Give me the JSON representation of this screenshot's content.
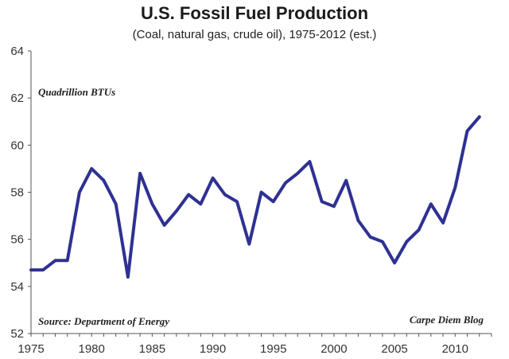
{
  "chart_data": {
    "type": "line",
    "title": "U.S. Fossil Fuel Production",
    "subtitle": "(Coal, natural gas, crude oil), 1975-2012 (est.)",
    "unit_label": "Quadrillion BTUs",
    "source": "Source: Department of Energy",
    "credit": "Carpe Diem Blog",
    "xlim": [
      1975,
      2013
    ],
    "ylim": [
      52,
      64
    ],
    "x_ticks": [
      1975,
      1980,
      1985,
      1990,
      1995,
      2000,
      2005,
      2010
    ],
    "y_ticks": [
      52,
      54,
      56,
      58,
      60,
      62,
      64
    ],
    "grid": "none",
    "line_color": "#2e3192",
    "x": [
      1975,
      1976,
      1977,
      1978,
      1979,
      1980,
      1981,
      1982,
      1983,
      1984,
      1985,
      1986,
      1987,
      1988,
      1989,
      1990,
      1991,
      1992,
      1993,
      1994,
      1995,
      1996,
      1997,
      1998,
      1999,
      2000,
      2001,
      2002,
      2003,
      2004,
      2005,
      2006,
      2007,
      2008,
      2009,
      2010,
      2011,
      2012
    ],
    "series": [
      {
        "values": [
          54.7,
          54.7,
          55.1,
          55.1,
          58.0,
          59.0,
          58.5,
          57.5,
          54.4,
          58.8,
          57.5,
          56.6,
          57.2,
          57.9,
          57.5,
          58.6,
          57.9,
          57.6,
          55.8,
          58.0,
          57.6,
          58.4,
          58.8,
          59.3,
          57.6,
          57.4,
          58.5,
          56.8,
          56.1,
          55.9,
          55.0,
          55.9,
          56.4,
          57.5,
          56.7,
          58.2,
          60.6,
          61.2
        ]
      }
    ]
  }
}
